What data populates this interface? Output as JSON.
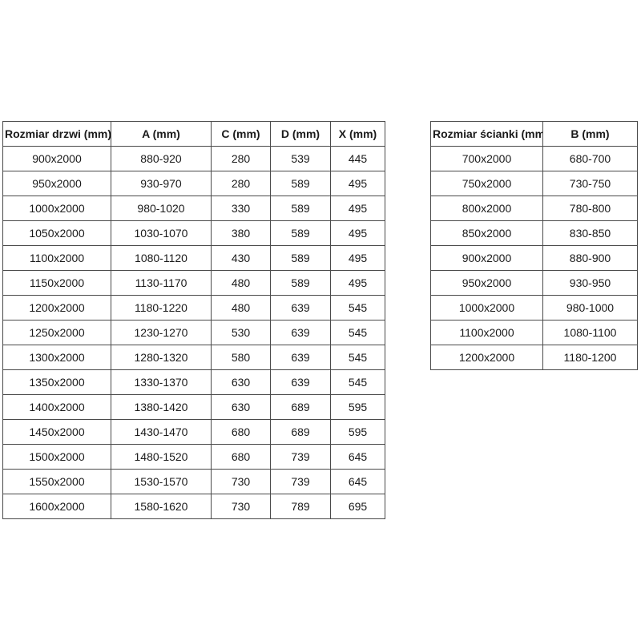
{
  "page": {
    "background_color": "#ffffff",
    "table_border_color": "#4a4a4a",
    "text_color": "#1a1a1a"
  },
  "doors_table": {
    "headers": [
      "Rozmiar drzwi (mm)",
      "A (mm)",
      "C (mm)",
      "D (mm)",
      "X (mm)"
    ],
    "rows": [
      [
        "900x2000",
        "880-920",
        "280",
        "539",
        "445"
      ],
      [
        "950x2000",
        "930-970",
        "280",
        "589",
        "495"
      ],
      [
        "1000x2000",
        "980-1020",
        "330",
        "589",
        "495"
      ],
      [
        "1050x2000",
        "1030-1070",
        "380",
        "589",
        "495"
      ],
      [
        "1100x2000",
        "1080-1120",
        "430",
        "589",
        "495"
      ],
      [
        "1150x2000",
        "1130-1170",
        "480",
        "589",
        "495"
      ],
      [
        "1200x2000",
        "1180-1220",
        "480",
        "639",
        "545"
      ],
      [
        "1250x2000",
        "1230-1270",
        "530",
        "639",
        "545"
      ],
      [
        "1300x2000",
        "1280-1320",
        "580",
        "639",
        "545"
      ],
      [
        "1350x2000",
        "1330-1370",
        "630",
        "639",
        "545"
      ],
      [
        "1400x2000",
        "1380-1420",
        "630",
        "689",
        "595"
      ],
      [
        "1450x2000",
        "1430-1470",
        "680",
        "689",
        "595"
      ],
      [
        "1500x2000",
        "1480-1520",
        "680",
        "739",
        "645"
      ],
      [
        "1550x2000",
        "1530-1570",
        "730",
        "739",
        "645"
      ],
      [
        "1600x2000",
        "1580-1620",
        "730",
        "789",
        "695"
      ]
    ]
  },
  "walls_table": {
    "headers": [
      "Rozmiar ścianki (mm)",
      "B (mm)"
    ],
    "rows": [
      [
        "700x2000",
        "680-700"
      ],
      [
        "750x2000",
        "730-750"
      ],
      [
        "800x2000",
        "780-800"
      ],
      [
        "850x2000",
        "830-850"
      ],
      [
        "900x2000",
        "880-900"
      ],
      [
        "950x2000",
        "930-950"
      ],
      [
        "1000x2000",
        "980-1000"
      ],
      [
        "1100x2000",
        "1080-1100"
      ],
      [
        "1200x2000",
        "1180-1200"
      ]
    ]
  }
}
